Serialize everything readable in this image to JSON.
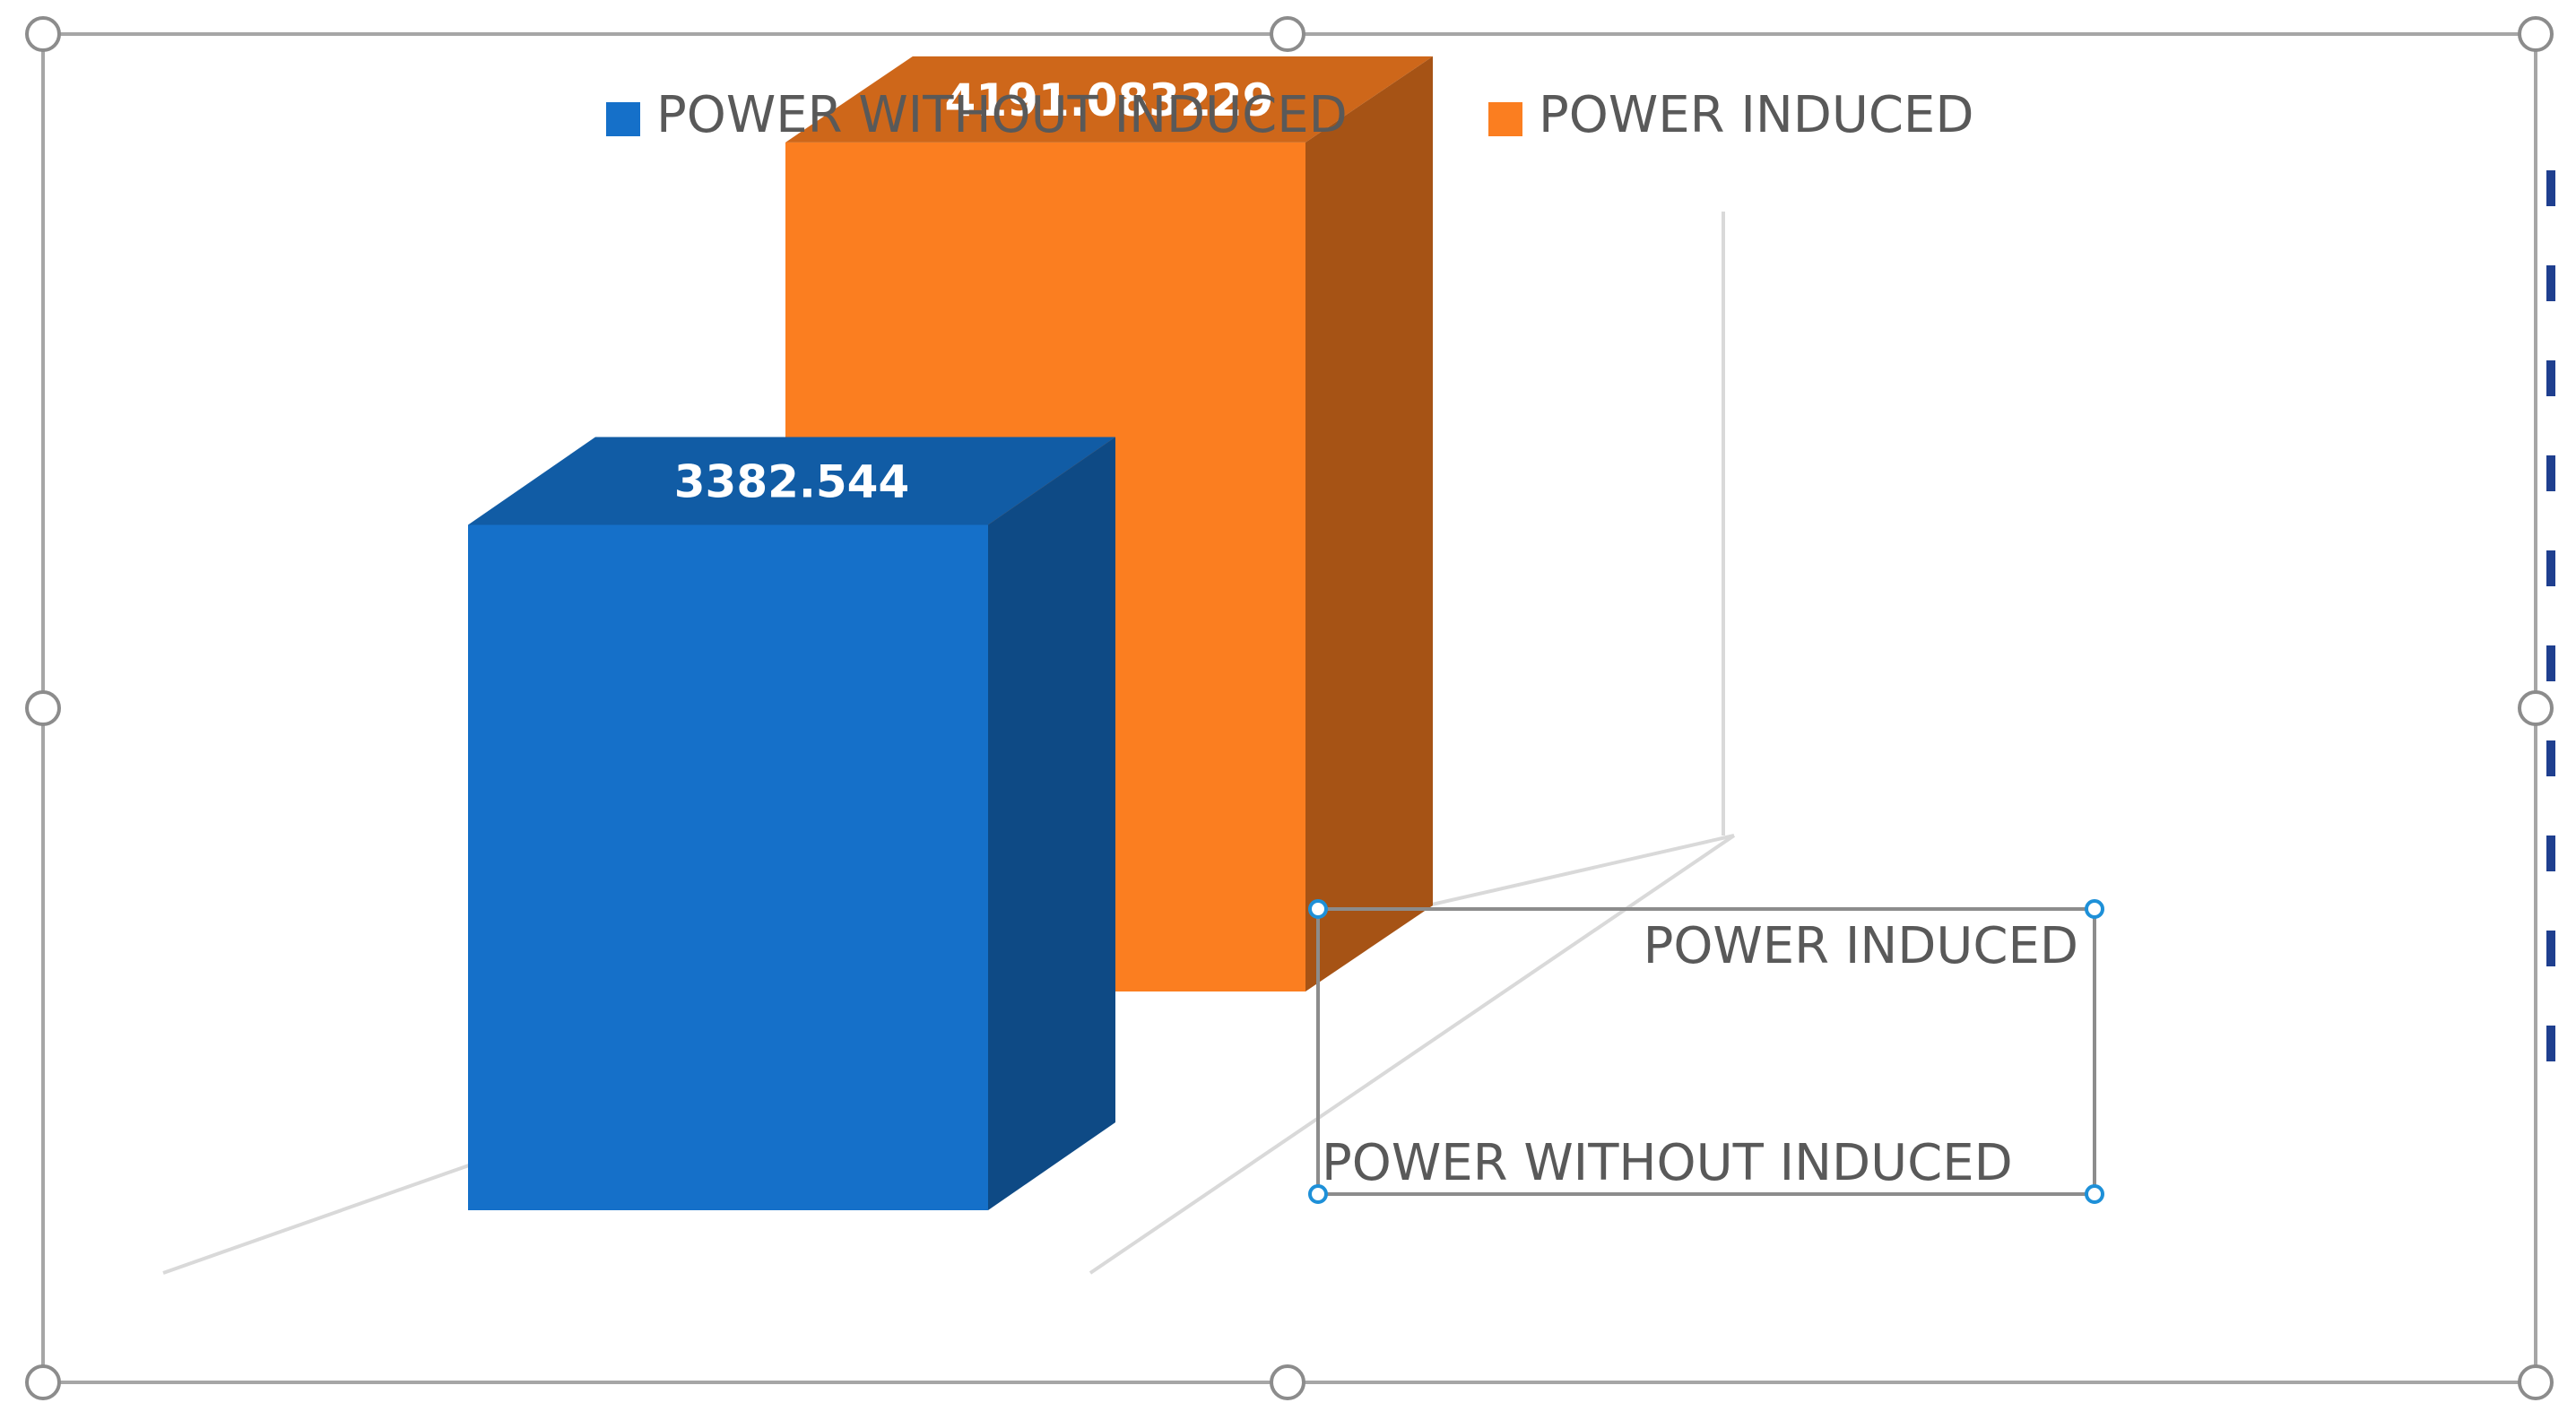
{
  "chart_data": {
    "type": "bar",
    "style": "3d-column",
    "categories": [
      "POWER  WITHOUT INDUCED",
      "POWER INDUCED"
    ],
    "series": [
      {
        "name": "POWER  WITHOUT INDUCED",
        "values": [
          3382.544,
          null
        ],
        "color": "#1570C9",
        "data_label": "3382.544"
      },
      {
        "name": "POWER INDUCED",
        "values": [
          null,
          4191.083229
        ],
        "color": "#FB7E20",
        "data_label": "4191.083229"
      }
    ],
    "legend": "top",
    "grid": true,
    "ylim": [
      0,
      5000
    ]
  }
}
